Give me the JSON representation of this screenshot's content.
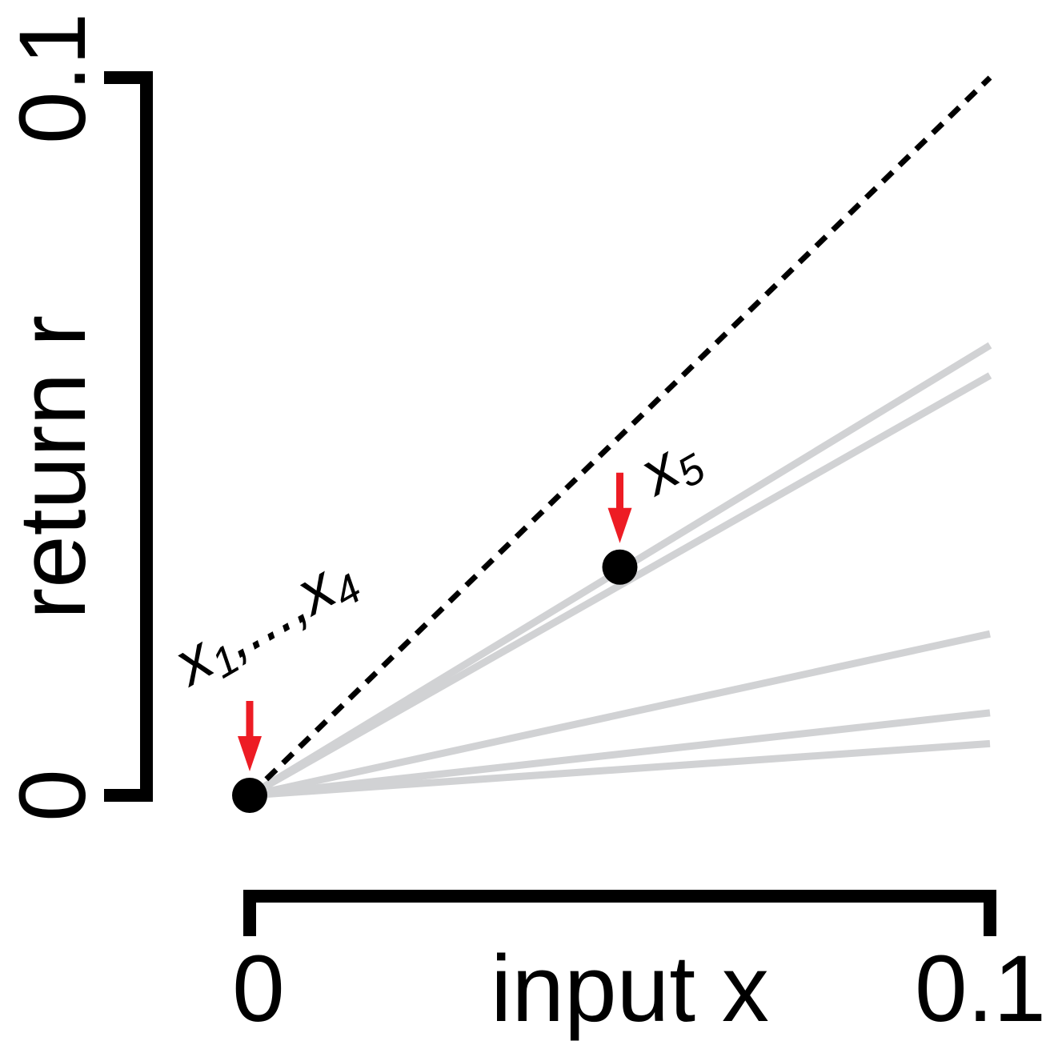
{
  "chart_data": {
    "type": "line",
    "xlabel": "input x",
    "ylabel": "return r",
    "xlim": [
      0,
      0.1
    ],
    "ylim": [
      0,
      0.1
    ],
    "x_ticks": [
      "0",
      "0.1"
    ],
    "y_ticks": [
      "0",
      "0.1"
    ],
    "grid": false,
    "reference_line": {
      "style": "dashed",
      "color": "#000000",
      "points": [
        [
          0,
          0
        ],
        [
          0.1,
          0.1
        ]
      ]
    },
    "series": [
      {
        "color": "#d1d2d4",
        "values": [
          [
            0,
            0
          ],
          [
            0.1,
            0.0627
          ]
        ]
      },
      {
        "color": "#d1d2d4",
        "values": [
          [
            0,
            0
          ],
          [
            0.1,
            0.0585
          ]
        ]
      },
      {
        "color": "#d1d2d4",
        "values": [
          [
            0,
            0
          ],
          [
            0.1,
            0.0225
          ]
        ]
      },
      {
        "color": "#d1d2d4",
        "values": [
          [
            0,
            0
          ],
          [
            0.1,
            0.0115
          ]
        ]
      },
      {
        "color": "#d1d2d4",
        "values": [
          [
            0,
            0
          ],
          [
            0.1,
            0.0072
          ]
        ]
      }
    ],
    "points": [
      {
        "x": 0.0,
        "y": 0.0
      },
      {
        "x": 0.05,
        "y": 0.0318
      }
    ],
    "annotations": [
      {
        "base": "x",
        "subscript": "1",
        "middle": ",...,",
        "base2": "x",
        "subscript2": "4",
        "arrow_color": "#ed1c24",
        "at_x": 0.0,
        "at_y": 0.0
      },
      {
        "base": "x",
        "subscript": "5",
        "arrow_color": "#ed1c24",
        "at_x": 0.05,
        "at_y": 0.0318
      }
    ]
  }
}
